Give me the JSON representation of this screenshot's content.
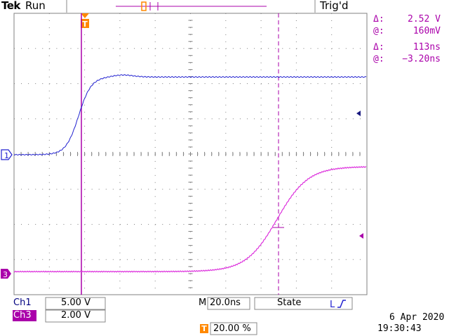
{
  "header": {
    "brand": "Tek",
    "run_status": "Run",
    "trigger_status": "Trig'd"
  },
  "cursor_readout": {
    "delta_v_symbol": "Δ:",
    "delta_v": "2.52 V",
    "at_v_symbol": "@:",
    "at_v": "160mV",
    "delta_t_symbol": "Δ:",
    "delta_t": "113ns",
    "at_t_symbol": "@:",
    "at_t": "−3.20ns"
  },
  "channels": {
    "ch1": {
      "tag": "Ch1",
      "scale": "5.00 V",
      "marker": "1",
      "color": "#2020d0"
    },
    "ch3": {
      "tag": "Ch3",
      "scale": "2.00 V",
      "marker": "3",
      "color": "#dd33dd"
    }
  },
  "timebase": {
    "prefix": "M",
    "scale": "20.0ns",
    "trigger_source": "State",
    "edge_icon": "rising-edge-icon"
  },
  "trigger_position": {
    "icon": "T",
    "value": "20.00 %"
  },
  "timestamp": {
    "date": "6 Apr 2020",
    "time": "19:30:43"
  },
  "colors": {
    "grid": "#808080",
    "cursor": "#aa00aa",
    "ch1": "#2020d0",
    "ch3": "#dd33dd",
    "trigger_marker": "#ff8800"
  }
}
